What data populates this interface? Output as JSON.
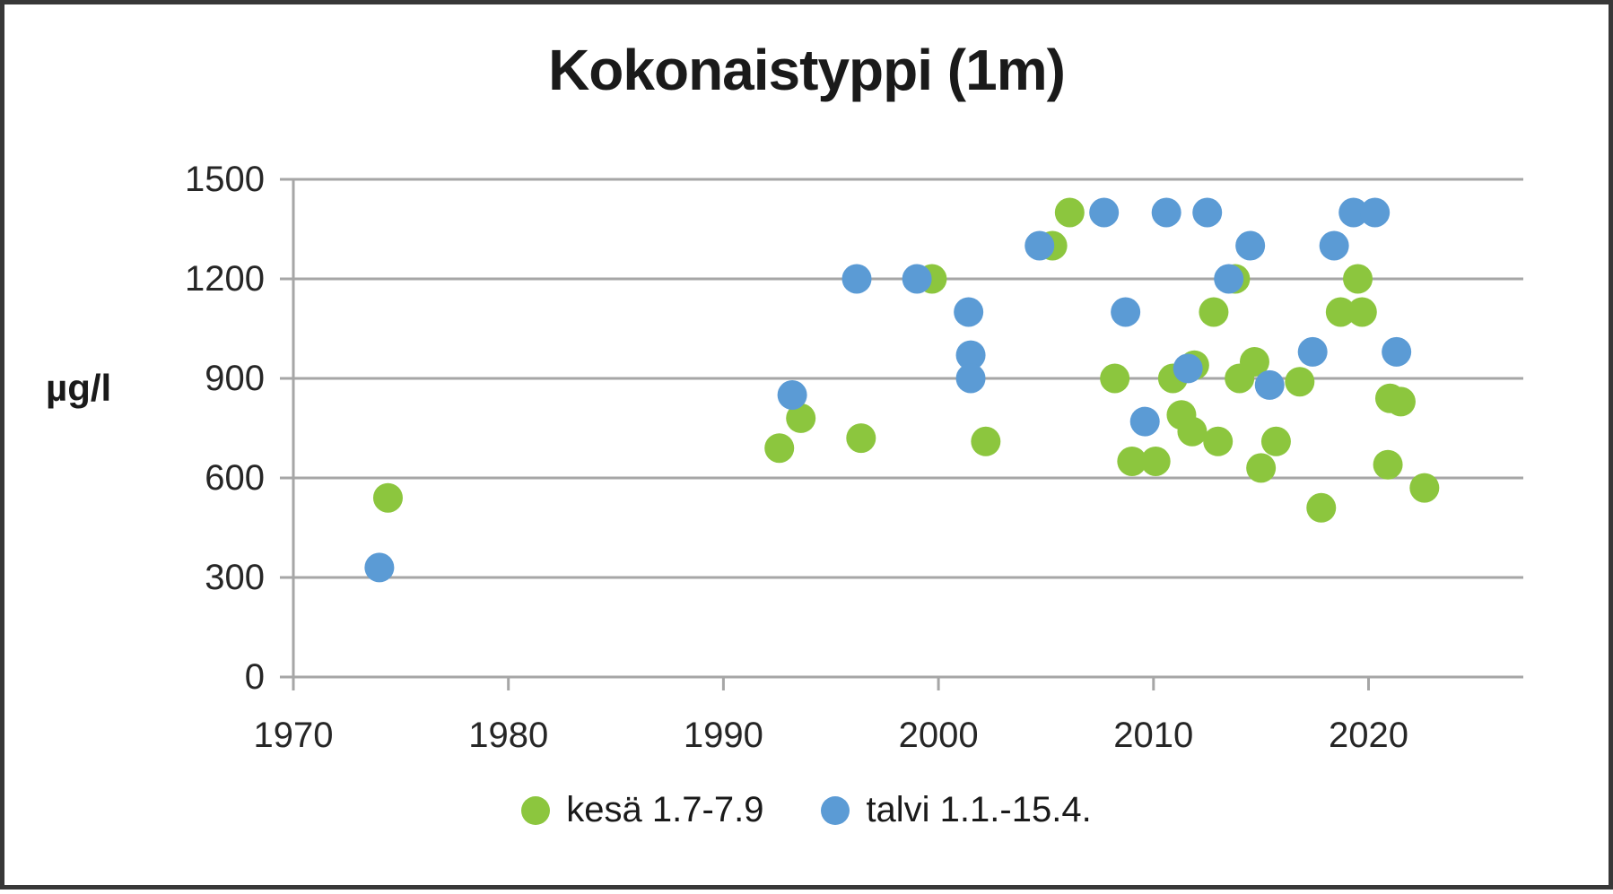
{
  "chart_data": {
    "type": "scatter",
    "title": "Kokonaistyppi (1m)",
    "ylabel": "µg/l",
    "xlabel": "",
    "x_ticks": [
      1970,
      1980,
      1990,
      2000,
      2010,
      2020
    ],
    "y_ticks": [
      0,
      300,
      600,
      900,
      1200,
      1500
    ],
    "xlim": [
      1969.4,
      2027.2
    ],
    "ylim": [
      0,
      1500
    ],
    "grid": true,
    "legend_position": "bottom",
    "colors": {
      "grid": "#A6A6A6",
      "axis": "#A6A6A6",
      "text": "#262626",
      "frame_border": "#383838",
      "background": "#FFFFFF"
    },
    "series": [
      {
        "name": "kesä 1.7-7.9",
        "color": "#8CC63E",
        "points": [
          [
            1974.4,
            540
          ],
          [
            1992.6,
            690
          ],
          [
            1993.6,
            780
          ],
          [
            1996.4,
            720
          ],
          [
            1999.7,
            1200
          ],
          [
            2002.2,
            710
          ],
          [
            2005.3,
            1300
          ],
          [
            2006.1,
            1400
          ],
          [
            2008.2,
            900
          ],
          [
            2009.0,
            650
          ],
          [
            2010.1,
            650
          ],
          [
            2010.9,
            900
          ],
          [
            2011.3,
            790
          ],
          [
            2011.8,
            740
          ],
          [
            2011.9,
            940
          ],
          [
            2012.8,
            1100
          ],
          [
            2013.0,
            710
          ],
          [
            2013.8,
            1200
          ],
          [
            2014.0,
            900
          ],
          [
            2014.7,
            950
          ],
          [
            2015.0,
            630
          ],
          [
            2015.7,
            710
          ],
          [
            2016.8,
            890
          ],
          [
            2017.8,
            510
          ],
          [
            2018.7,
            1100
          ],
          [
            2019.5,
            1200
          ],
          [
            2019.7,
            1100
          ],
          [
            2020.9,
            640
          ],
          [
            2021.0,
            840
          ],
          [
            2021.5,
            830
          ],
          [
            2022.6,
            570
          ]
        ]
      },
      {
        "name": "talvi 1.1.-15.4.",
        "color": "#5B9BD5",
        "points": [
          [
            1974.0,
            330
          ],
          [
            1993.2,
            850
          ],
          [
            1996.2,
            1200
          ],
          [
            1999.0,
            1200
          ],
          [
            2001.4,
            1100
          ],
          [
            2001.5,
            970
          ],
          [
            2001.5,
            900
          ],
          [
            2004.7,
            1300
          ],
          [
            2007.7,
            1400
          ],
          [
            2008.7,
            1100
          ],
          [
            2009.6,
            770
          ],
          [
            2010.6,
            1400
          ],
          [
            2011.6,
            930
          ],
          [
            2012.5,
            1400
          ],
          [
            2013.5,
            1200
          ],
          [
            2014.5,
            1300
          ],
          [
            2015.4,
            880
          ],
          [
            2017.4,
            980
          ],
          [
            2018.4,
            1300
          ],
          [
            2019.3,
            1400
          ],
          [
            2020.3,
            1400
          ],
          [
            2021.3,
            980
          ]
        ]
      }
    ]
  }
}
